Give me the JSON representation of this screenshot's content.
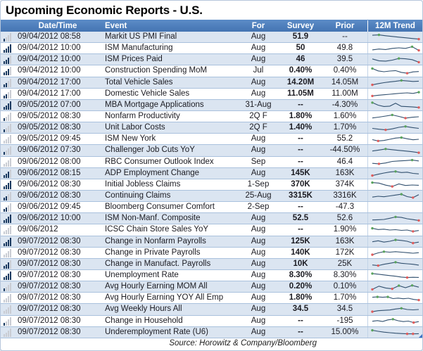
{
  "colors": {
    "header_bg": "#4a7ebb",
    "stripe": "#dbe5f1",
    "row_border": "#a9c1dd",
    "sparkline_line": "#31506f",
    "marker_high": "#59a35d",
    "marker_low": "#e05c5c",
    "importance_filled": "#17375e",
    "importance_empty": "#c9ccd3",
    "corner_marker": "#3a6fc4"
  },
  "chart_data": {
    "type": "table",
    "title": "Upcoming Economic Reports - U.S.",
    "source": "Source: Horowitz & Company/Bloomberg",
    "columns": [
      "Date/Time",
      "Event",
      "For",
      "Survey",
      "Prior",
      "12M Trend"
    ],
    "importance_scale": "0-4 filled bars, left icon per row",
    "sparkline_legend": {
      "line": "12-month trend",
      "green_marker": "high point",
      "red_marker": "low point"
    },
    "rows": [
      {
        "importance": 1,
        "datetime": "09/04/2012 08:58",
        "event": "Markit US PMI Final",
        "for": "Aug",
        "survey": "51.9",
        "prior": "--",
        "spark": {
          "y": [
            0.74,
            0.78,
            0.68,
            0.6,
            0.52,
            0.44,
            0.36,
            0.28
          ],
          "green": [
            1
          ],
          "red": [
            7
          ]
        }
      },
      {
        "importance": 4,
        "datetime": "09/04/2012 10:00",
        "event": "ISM Manufacturing",
        "for": "Aug",
        "survey": "50",
        "prior": "49.8",
        "spark": {
          "y": [
            0.34,
            0.44,
            0.38,
            0.52,
            0.58,
            0.52,
            0.72,
            0.28
          ],
          "green": [
            6
          ],
          "red": [
            7
          ]
        }
      },
      {
        "importance": 3,
        "datetime": "09/04/2012 10:00",
        "event": "ISM Prices Paid",
        "for": "Aug",
        "survey": "46",
        "prior": "39.5",
        "spark": {
          "y": [
            0.6,
            0.38,
            0.34,
            0.46,
            0.66,
            0.62,
            0.52,
            0.22
          ],
          "green": [
            4
          ],
          "red": [
            7
          ]
        }
      },
      {
        "importance": 3,
        "datetime": "09/04/2012 10:00",
        "event": "Construction Spending MoM",
        "for": "Jul",
        "survey": "0.40%",
        "prior": "0.40%",
        "spark": {
          "y": [
            0.8,
            0.52,
            0.42,
            0.5,
            0.55,
            0.34,
            0.24,
            0.4,
            0.44
          ],
          "green": [
            0
          ],
          "red": [
            6
          ]
        }
      },
      {
        "importance": 2,
        "datetime": "09/04/2012 17:00",
        "event": "Total Vehicle Sales",
        "for": "Aug",
        "survey": "14.20M",
        "prior": "14.05M",
        "spark": {
          "y": [
            0.2,
            0.34,
            0.46,
            0.55,
            0.62,
            0.72,
            0.66,
            0.6,
            0.63
          ],
          "green": [
            5
          ],
          "red": [
            0
          ]
        }
      },
      {
        "importance": 2,
        "datetime": "09/04/2012 17:00",
        "event": "Domestic Vehicle Sales",
        "for": "Aug",
        "survey": "11.05M",
        "prior": "11.00M",
        "spark": {
          "y": [
            0.22,
            0.3,
            0.36,
            0.42,
            0.48,
            0.54,
            0.58,
            0.52,
            0.66
          ],
          "green": [
            8
          ],
          "red": [
            0
          ]
        }
      },
      {
        "importance": 4,
        "datetime": "09/05/2012 07:00",
        "event": "MBA Mortgage Applications",
        "for": "31-Aug",
        "survey": "--",
        "prior": "-4.30%",
        "spark": {
          "y": [
            0.76,
            0.46,
            0.3,
            0.34,
            0.68,
            0.32,
            0.28,
            0.24,
            0.18
          ],
          "green": [
            0
          ],
          "red": [
            8
          ]
        }
      },
      {
        "importance": 1,
        "datetime": "09/05/2012 08:30",
        "event": "Nonfarm Productivity",
        "for": "2Q F",
        "survey": "1.80%",
        "prior": "1.60%",
        "spark": {
          "y": [
            0.36,
            0.46,
            0.58,
            0.72,
            0.54,
            0.34,
            0.44,
            0.5
          ],
          "green": [
            3
          ],
          "red": [
            5
          ]
        }
      },
      {
        "importance": 1,
        "datetime": "09/05/2012 08:30",
        "event": "Unit Labor Costs",
        "for": "2Q F",
        "survey": "1.40%",
        "prior": "1.70%",
        "spark": {
          "y": [
            0.46,
            0.36,
            0.28,
            0.4,
            0.58,
            0.68,
            0.56,
            0.46
          ],
          "green": [
            5
          ],
          "red": [
            2
          ]
        }
      },
      {
        "importance": 0,
        "datetime": "09/05/2012 09:45",
        "event": "ISM New York",
        "for": "Aug",
        "survey": "--",
        "prior": "55.2",
        "spark": {
          "y": [
            0.46,
            0.3,
            0.36,
            0.5,
            0.64,
            0.7,
            0.56,
            0.44,
            0.5
          ],
          "green": [
            5
          ],
          "red": [
            1
          ]
        }
      },
      {
        "importance": 1,
        "datetime": "09/06/2012 07:30",
        "event": "Challenger Job Cuts YoY",
        "for": "Aug",
        "survey": "--",
        "prior": "-44.50%",
        "spark": {
          "y": [
            0.44,
            0.56,
            0.68,
            0.6,
            0.52,
            0.44,
            0.36,
            0.24
          ],
          "green": [
            2
          ],
          "red": [
            7
          ]
        }
      },
      {
        "importance": 0,
        "datetime": "09/06/2012 08:00",
        "event": "RBC Consumer Outlook Index",
        "for": "Sep",
        "survey": "--",
        "prior": "46.4",
        "spark": {
          "y": [
            0.32,
            0.26,
            0.36,
            0.54,
            0.6,
            0.64,
            0.7,
            0.6
          ],
          "green": [
            6
          ],
          "red": [
            1
          ]
        }
      },
      {
        "importance": 3,
        "datetime": "09/06/2012 08:15",
        "event": "ADP Employment Change",
        "for": "Aug",
        "survey": "145K",
        "prior": "163K",
        "spark": {
          "y": [
            0.2,
            0.36,
            0.5,
            0.62,
            0.68,
            0.56,
            0.6,
            0.46,
            0.4
          ],
          "green": [
            4
          ],
          "red": [
            0
          ]
        }
      },
      {
        "importance": 4,
        "datetime": "09/06/2012 08:30",
        "event": "Initial Jobless Claims",
        "for": "1-Sep",
        "survey": "370K",
        "prior": "374K",
        "spark": {
          "y": [
            0.7,
            0.64,
            0.4,
            0.24,
            0.54,
            0.36,
            0.42,
            0.38
          ],
          "green": [
            0
          ],
          "red": [
            3
          ]
        }
      },
      {
        "importance": 2,
        "datetime": "09/06/2012 08:30",
        "event": "Continuing Claims",
        "for": "25-Aug",
        "survey": "3315K",
        "prior": "3316K",
        "spark": {
          "y": [
            0.4,
            0.5,
            0.44,
            0.54,
            0.64,
            0.74,
            0.46,
            0.34,
            0.68
          ],
          "green": [
            5
          ],
          "red": [
            7
          ]
        }
      },
      {
        "importance": 2,
        "datetime": "09/06/2012 09:45",
        "event": "Bloomberg Consumer Comfort",
        "for": "2-Sep",
        "survey": "--",
        "prior": "-47.3",
        "spark": null
      },
      {
        "importance": 4,
        "datetime": "09/06/2012 10:00",
        "event": "ISM Non-Manf. Composite",
        "for": "Aug",
        "survey": "52.5",
        "prior": "52.6",
        "spark": {
          "y": [
            0.36,
            0.38,
            0.42,
            0.56,
            0.72,
            0.66,
            0.5,
            0.4,
            0.3
          ],
          "green": [
            4
          ],
          "red": [
            8
          ]
        }
      },
      {
        "importance": 0,
        "datetime": "09/06/2012",
        "event": "ICSC Chain Store Sales YoY",
        "for": "Aug",
        "survey": "--",
        "prior": "1.90%",
        "spark": {
          "y": [
            0.7,
            0.56,
            0.6,
            0.5,
            0.54,
            0.46,
            0.5,
            0.34,
            0.44
          ],
          "green": [
            0
          ],
          "red": [
            7
          ]
        }
      },
      {
        "importance": 4,
        "datetime": "09/07/2012 08:30",
        "event": "Change in Nonfarm Payrolls",
        "for": "Aug",
        "survey": "125K",
        "prior": "163K",
        "spark": {
          "y": [
            0.44,
            0.56,
            0.4,
            0.5,
            0.66,
            0.6,
            0.5,
            0.28,
            0.4
          ],
          "green": [
            4
          ],
          "red": [
            7
          ]
        }
      },
      {
        "importance": 0,
        "datetime": "09/07/2012 08:30",
        "event": "Change in Private Payrolls",
        "for": "Aug",
        "survey": "140K",
        "prior": "172K",
        "spark": {
          "y": [
            0.24,
            0.46,
            0.6,
            0.54,
            0.6,
            0.54,
            0.48,
            0.42,
            0.48
          ],
          "green": [
            2
          ],
          "red": [
            0
          ]
        }
      },
      {
        "importance": 3,
        "datetime": "09/07/2012 08:30",
        "event": "Change in Manufact. Payrolls",
        "for": "Aug",
        "survey": "10K",
        "prior": "25K",
        "spark": {
          "y": [
            0.36,
            0.28,
            0.44,
            0.56,
            0.68,
            0.56,
            0.5,
            0.44,
            0.34
          ],
          "green": [
            4
          ],
          "red": [
            1
          ]
        }
      },
      {
        "importance": 4,
        "datetime": "09/07/2012 08:30",
        "event": "Unemployment Rate",
        "for": "Aug",
        "survey": "8.30%",
        "prior": "8.30%",
        "spark": {
          "y": [
            0.76,
            0.68,
            0.6,
            0.52,
            0.44,
            0.34,
            0.28,
            0.32,
            0.3
          ],
          "green": [
            0
          ],
          "red": [
            6
          ]
        }
      },
      {
        "importance": 1,
        "datetime": "09/07/2012 08:30",
        "event": "Avg Hourly Earning MOM All",
        "for": "Aug",
        "survey": "0.20%",
        "prior": "0.10%",
        "spark": {
          "y": [
            0.22,
            0.6,
            0.38,
            0.28,
            0.66,
            0.42,
            0.68,
            0.48
          ],
          "green": [
            4,
            6
          ],
          "red": [
            0,
            3
          ]
        }
      },
      {
        "importance": 0,
        "datetime": "09/07/2012 08:30",
        "event": "Avg Hourly Earning YOY All Emp",
        "for": "Aug",
        "survey": "1.80%",
        "prior": "1.70%",
        "spark": {
          "y": [
            0.62,
            0.66,
            0.62,
            0.66,
            0.46,
            0.52,
            0.44,
            0.5,
            0.36,
            0.28
          ],
          "green": [
            1,
            3
          ],
          "red": [
            9
          ]
        }
      },
      {
        "importance": 0,
        "datetime": "09/07/2012 08:30",
        "event": "Avg Weekly Hours All",
        "for": "Aug",
        "survey": "34.5",
        "prior": "34.5",
        "spark": {
          "y": [
            0.24,
            0.36,
            0.4,
            0.44,
            0.56,
            0.64,
            0.5,
            0.46,
            0.5
          ],
          "green": [
            5
          ],
          "red": [
            0
          ]
        }
      },
      {
        "importance": 1,
        "datetime": "09/07/2012 08:30",
        "event": "Change in Household",
        "for": "Aug",
        "survey": "--",
        "prior": "-195",
        "spark": {
          "y": [
            0.44,
            0.52,
            0.42,
            0.6,
            0.68,
            0.5,
            0.4,
            0.46,
            0.28,
            0.4
          ],
          "green": [
            4
          ],
          "red": [
            8
          ]
        }
      },
      {
        "importance": 0,
        "datetime": "09/07/2012 08:30",
        "event": "Underemployment Rate (U6)",
        "for": "Aug",
        "survey": "--",
        "prior": "15.00%",
        "spark": {
          "y": [
            0.7,
            0.58,
            0.48,
            0.42,
            0.36,
            0.32,
            0.28,
            0.28,
            0.3
          ],
          "green": [
            0
          ],
          "red": [
            6,
            7
          ]
        }
      }
    ]
  }
}
